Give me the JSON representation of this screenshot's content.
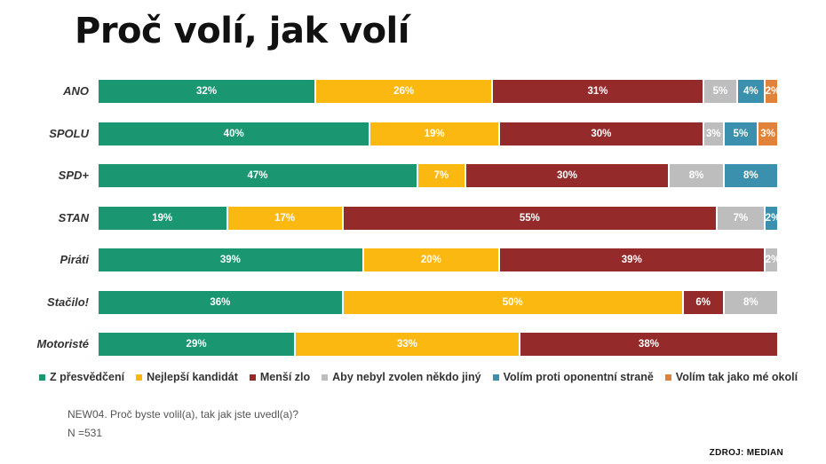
{
  "title": "Proč volí, jak volí",
  "chart_data": {
    "type": "bar",
    "orientation": "horizontal",
    "stacked": true,
    "categories": [
      "ANO",
      "SPOLU",
      "SPD+",
      "STAN",
      "Piráti",
      "Stačilo!",
      "Motoristé"
    ],
    "series": [
      {
        "name": "Z přesvědčení",
        "color": "#1a9670",
        "values": [
          32,
          40,
          47,
          19,
          39,
          36,
          29
        ]
      },
      {
        "name": "Nejlepší kandidát",
        "color": "#fbb811",
        "values": [
          26,
          19,
          7,
          17,
          20,
          50,
          33
        ]
      },
      {
        "name": "Menší zlo",
        "color": "#952a2b",
        "values": [
          31,
          30,
          30,
          55,
          39,
          6,
          38
        ]
      },
      {
        "name": "Aby nebyl zvolen někdo jiný",
        "color": "#bdbdbd",
        "values": [
          5,
          3,
          8,
          7,
          2,
          8,
          0
        ]
      },
      {
        "name": "Volím proti oponentní straně",
        "color": "#3a90ad",
        "values": [
          4,
          5,
          8,
          2,
          0,
          0,
          0
        ]
      },
      {
        "name": "Volím tak jako mé okolí",
        "color": "#e1823b",
        "values": [
          2,
          3,
          0,
          0,
          0,
          0,
          0
        ]
      }
    ],
    "value_suffix": "%",
    "legend_position": "bottom",
    "grid": false
  },
  "question": "NEW04. Proč byste volil(a), tak jak jste uvedl(a)?",
  "sample": "N =531",
  "source": "ZDROJ: MEDIAN"
}
